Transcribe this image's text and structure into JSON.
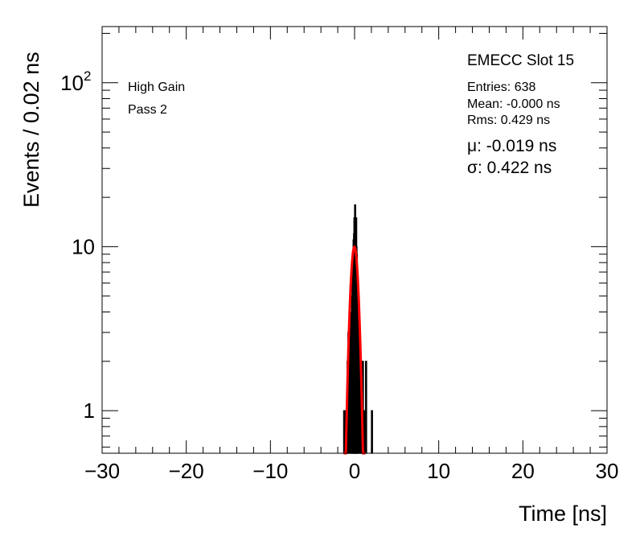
{
  "chart_data": {
    "type": "histogram",
    "xlabel": "Time [ns]",
    "ylabel": "Events / 0.02 ns",
    "xlim": [
      -30,
      30
    ],
    "ylim": [
      0.55,
      220
    ],
    "yscale": "log",
    "bin_width": 0.02,
    "x_ticks": [
      -30,
      -20,
      -10,
      0,
      10,
      20,
      30
    ],
    "x_tick_labels": [
      "−30",
      "−20",
      "−10",
      "0",
      "10",
      "20",
      "30"
    ],
    "y_ticks": [
      {
        "value": 1,
        "label": "1",
        "sup": ""
      },
      {
        "value": 10,
        "label": "10",
        "sup": ""
      },
      {
        "value": 100,
        "label": "10",
        "sup": "2"
      }
    ],
    "histogram": {
      "color": "#000000",
      "bins": [
        {
          "x": -1.3,
          "y": 1
        },
        {
          "x": -1.14,
          "y": 1
        },
        {
          "x": -1.0,
          "y": 1
        },
        {
          "x": -0.9,
          "y": 2
        },
        {
          "x": -0.8,
          "y": 3
        },
        {
          "x": -0.7,
          "y": 3
        },
        {
          "x": -0.6,
          "y": 2
        },
        {
          "x": -0.5,
          "y": 4
        },
        {
          "x": -0.42,
          "y": 3
        },
        {
          "x": -0.36,
          "y": 5
        },
        {
          "x": -0.3,
          "y": 6
        },
        {
          "x": -0.24,
          "y": 8
        },
        {
          "x": -0.18,
          "y": 11
        },
        {
          "x": -0.12,
          "y": 12
        },
        {
          "x": -0.08,
          "y": 15
        },
        {
          "x": -0.04,
          "y": 13
        },
        {
          "x": 0.0,
          "y": 18
        },
        {
          "x": 0.04,
          "y": 14
        },
        {
          "x": 0.08,
          "y": 12
        },
        {
          "x": 0.12,
          "y": 15
        },
        {
          "x": 0.16,
          "y": 10
        },
        {
          "x": 0.2,
          "y": 9
        },
        {
          "x": 0.26,
          "y": 7
        },
        {
          "x": 0.32,
          "y": 6
        },
        {
          "x": 0.4,
          "y": 5
        },
        {
          "x": 0.48,
          "y": 4
        },
        {
          "x": 0.56,
          "y": 3
        },
        {
          "x": 0.64,
          "y": 2
        },
        {
          "x": 0.72,
          "y": 2
        },
        {
          "x": 0.8,
          "y": 1
        },
        {
          "x": 0.92,
          "y": 2
        },
        {
          "x": 1.1,
          "y": 1
        },
        {
          "x": 1.3,
          "y": 2
        },
        {
          "x": 2.0,
          "y": 1
        }
      ]
    },
    "fit": {
      "type": "gaussian",
      "color": "#ff0000",
      "amplitude": 10,
      "mean": -0.019,
      "sigma": 0.422,
      "range": [
        -1.3,
        1.3
      ]
    }
  },
  "labels": {
    "gain": "High Gain",
    "pass": "Pass 2",
    "slot": "EMECC Slot 15",
    "entries": "Entries: 638",
    "mean": "Mean: -0.000 ns",
    "rms": "Rms: 0.429 ns",
    "mu": "μ: -0.019 ns",
    "sigma": "σ: 0.422 ns"
  }
}
